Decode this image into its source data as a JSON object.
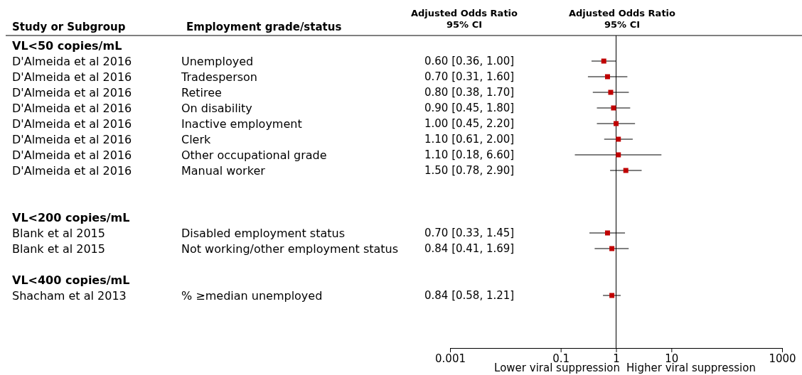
{
  "chart_data": {
    "type": "scatter",
    "orientation": "horizontal",
    "xlabel": "Adjusted Odds Ratio\n95% CI",
    "categories": [
      null,
      "Unemployed",
      "Tradesperson",
      "Retiree",
      "On disability",
      "Inactive employment",
      "Clerk",
      "Other occupational grade",
      "Manual worker",
      null,
      null,
      null,
      "Disabled employment status",
      "Not working/other employment status",
      null,
      null,
      "% ≥median unemployed"
    ],
    "series": [
      {
        "color": "#c00000",
        "values": [
          null,
          0.6,
          0.7,
          0.8,
          0.9,
          1.0,
          1.1,
          1.1,
          1.5,
          null,
          null,
          null,
          0.7,
          0.84,
          null,
          null,
          0.84
        ],
        "errors": [
          null,
          [
            0.36,
            1.0
          ],
          [
            0.31,
            1.6
          ],
          [
            0.38,
            1.7
          ],
          [
            0.45,
            1.8
          ],
          [
            0.45,
            2.2
          ],
          [
            0.61,
            2.0
          ],
          [
            0.18,
            6.6
          ],
          [
            0.78,
            2.9
          ],
          null,
          null,
          null,
          [
            0.33,
            1.45
          ],
          [
            0.41,
            1.69
          ],
          null,
          null,
          [
            0.58,
            1.21
          ]
        ]
      }
    ],
    "log": "x",
    "xlim": [
      0.001,
      1000
    ],
    "xticks": [
      0.001,
      0.1,
      1,
      10,
      1000
    ],
    "marker": "square",
    "ref_lines": [
      {
        "axis": "x",
        "value": 1,
        "color": "#000000"
      }
    ],
    "annotations": [
      "Study or Subgroup",
      "Employment grade/status",
      "Adjusted Odds Ratio\n95% CI",
      "Lower viral suppression",
      "Higher viral suppression",
      "VL<50 copies/mL",
      "VL<200 copies/mL",
      "VL<400 copies/mL",
      "D'Almeida et al 2016",
      "D'Almeida et al 2016",
      "D'Almeida et al 2016",
      "D'Almeida et al 2016",
      "D'Almeida et al 2016",
      "D'Almeida et al 2016",
      "D'Almeida et al 2016",
      "D'Almeida et al 2016",
      "Blank et al 2015",
      "Blank et al 2015",
      "Shacham et al 2013",
      "0.60 [0.36, 1.00]",
      "0.70 [0.31, 1.60]",
      "0.80 [0.38, 1.70]",
      "0.90 [0.45, 1.80]",
      "1.00 [0.45, 2.20]",
      "1.10 [0.61, 2.00]",
      "1.10 [0.18, 6.60]",
      "1.50 [0.78, 2.90]",
      "0.70 [0.33, 1.45]",
      "0.84 [0.41, 1.69]",
      "0.84 [0.58, 1.21]"
    ]
  }
}
